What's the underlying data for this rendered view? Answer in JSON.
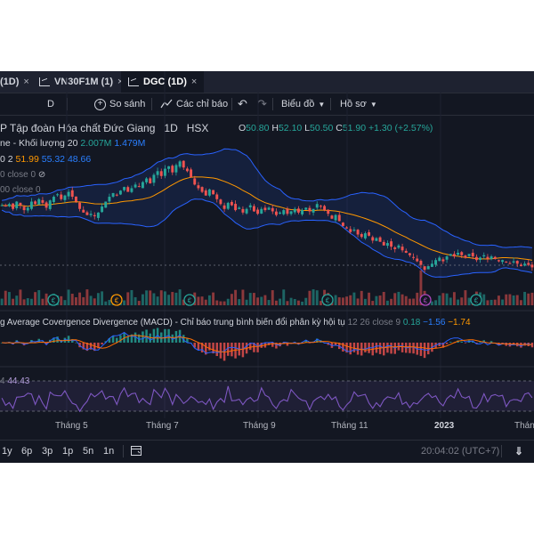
{
  "tabs": [
    {
      "label": "(1D)",
      "close": "×"
    },
    {
      "label": "VN30F1M (1)",
      "close": "×"
    },
    {
      "label": "DGC (1D)",
      "close": "×",
      "active": true
    }
  ],
  "toolbar": {
    "interval": "D",
    "compare": "So sánh",
    "indicators": "Các chỉ báo",
    "undo": "↶",
    "redo": "↷",
    "chart_type": "Biểu đồ",
    "profile": "Hồ sơ"
  },
  "symbol": {
    "name": "P Tập đoàn Hóa chất Đức Giang",
    "interval": "1D",
    "exchange": "HSX",
    "o_label": "O",
    "o": "50.80",
    "h_label": "H",
    "h": "52.10",
    "l_label": "L",
    "l": "50.50",
    "c_label": "C",
    "c": "51.90",
    "change": "+1.30 (+2.57%)"
  },
  "volume_legend": {
    "label": "ne - Khối lượng 20",
    "v1": "2.007M",
    "v2": "1.479M"
  },
  "bb_legend": {
    "label": "0 2",
    "v1": "51.99",
    "v2": "55.32",
    "v3": "48.66"
  },
  "faded_legends": [
    "0 close 0",
    "00 close 0"
  ],
  "macd": {
    "label": "g Average Covergence Divergence (MACD) - Chỉ báo trung bình biến đổi phân kỳ hội tụ",
    "params": "12 26 close 9",
    "v1": "0.18",
    "v2": "−1.56",
    "v3": "−1.74"
  },
  "rsi": {
    "label": "4",
    "value": "44.43"
  },
  "x_axis": [
    "Tháng 5",
    "Tháng 7",
    "Tháng 9",
    "Tháng 11",
    "2023",
    "Tháng"
  ],
  "ranges": [
    "1y",
    "6p",
    "3p",
    "1p",
    "5n",
    "1n"
  ],
  "time": "20:04:02 (UTC+7)",
  "colors": {
    "up": "#26a69a",
    "down": "#ef5350",
    "bb_band": "#2962ff",
    "ma": "#ff9800",
    "rsi": "#7e57c2",
    "background": "#131722"
  },
  "icons": [
    "chart-icon",
    "close-icon",
    "plus-circle-icon",
    "indicator-icon",
    "undo-icon",
    "redo-icon",
    "chevron-down-icon",
    "event-icon",
    "go-to-date-icon"
  ],
  "chart_data": {
    "type": "candlestick",
    "symbol": "DGC",
    "x_ticks": [
      "Tháng 5",
      "Tháng 7",
      "Tháng 9",
      "Tháng 11",
      "2023"
    ],
    "close_series": [
      103,
      102,
      104,
      100,
      106,
      103,
      99,
      101,
      106,
      104,
      108,
      105,
      101,
      107,
      110,
      112,
      108,
      111,
      114,
      110,
      106,
      100,
      97,
      95,
      96,
      94,
      97,
      102,
      106,
      110,
      113,
      111,
      115,
      118,
      114,
      117,
      120,
      118,
      122,
      125,
      121,
      128,
      131,
      127,
      133,
      135,
      130,
      136,
      139,
      134,
      131,
      126,
      120,
      117,
      114,
      111,
      116,
      112,
      108,
      104,
      100,
      105,
      103,
      99,
      101,
      97,
      100,
      103,
      98,
      96,
      100,
      99,
      101,
      98,
      95,
      97,
      99,
      96,
      98,
      100,
      97,
      99,
      101,
      98,
      100,
      104,
      102,
      99,
      96,
      92,
      95,
      90,
      86,
      84,
      81,
      83,
      79,
      77,
      80,
      78,
      74,
      76,
      73,
      70,
      72,
      69,
      67,
      70,
      66,
      64,
      62,
      60,
      57,
      54,
      50,
      53,
      55,
      58,
      60,
      57,
      61,
      63,
      61,
      64,
      62,
      60,
      63,
      61,
      58,
      60,
      62,
      59,
      61,
      59,
      57,
      58,
      56,
      55,
      57,
      55,
      53,
      55,
      54,
      52
    ],
    "events": [
      "earnings",
      "dividend",
      "earnings",
      "earnings",
      "split",
      "earnings"
    ]
  }
}
